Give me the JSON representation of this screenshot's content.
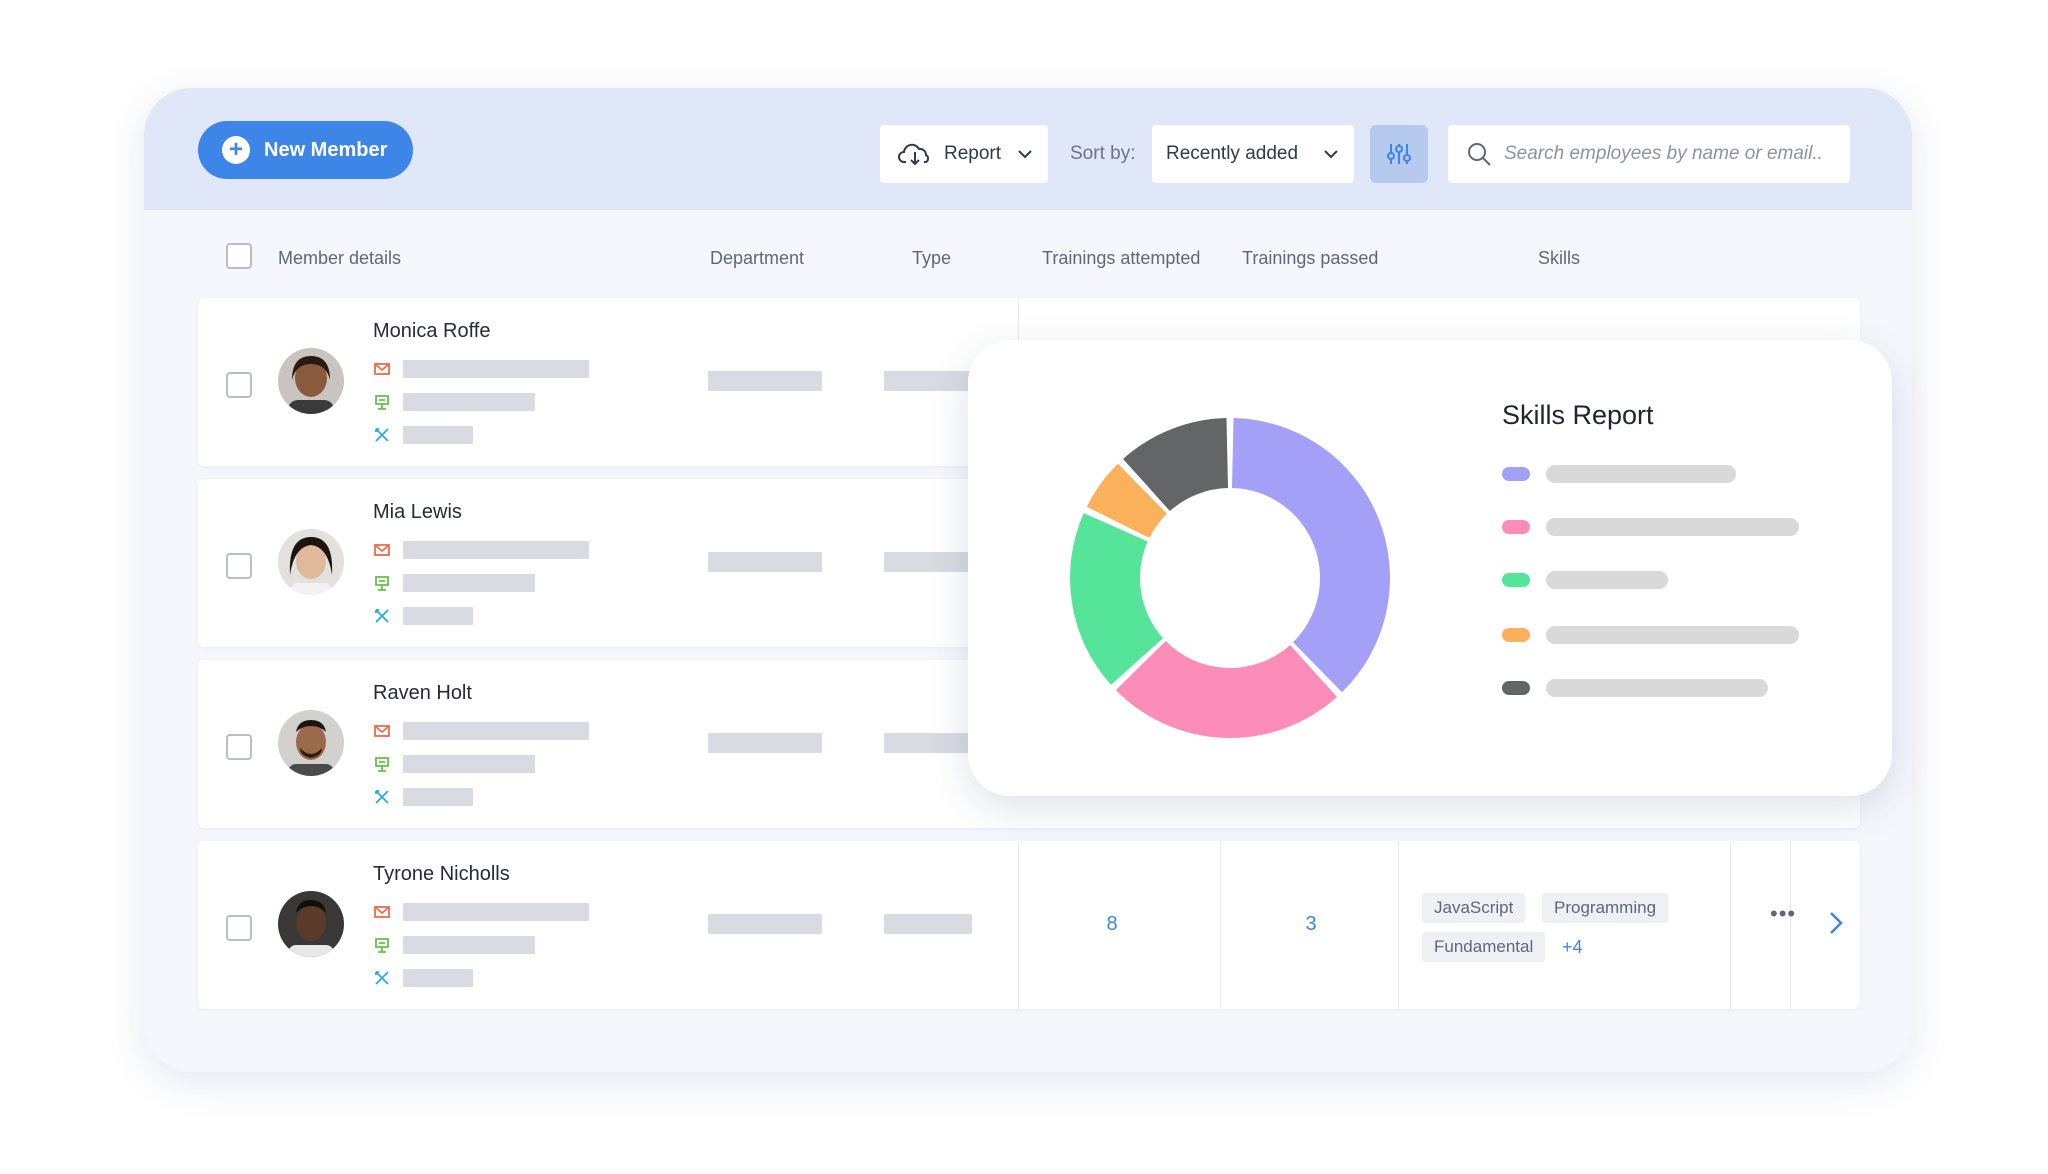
{
  "toolbar": {
    "new_member_label": "New Member",
    "report_label": "Report",
    "sort_by_label": "Sort by:",
    "sort_value": "Recently added",
    "search_placeholder": "Search employees by name or email.."
  },
  "table": {
    "columns": [
      "Member details",
      "Department",
      "Type",
      "Trainings attempted",
      "Trainings passed",
      "Skills"
    ],
    "rows": [
      {
        "name": "Monica Roffe"
      },
      {
        "name": "Mia Lewis"
      },
      {
        "name": "Raven Holt"
      },
      {
        "name": "Tyrone Nicholls",
        "trainings_attempted": "8",
        "trainings_passed": "3",
        "skills": [
          "JavaScript",
          "Programming",
          "Fundamental"
        ],
        "more_skills": "+4"
      }
    ]
  },
  "skills_report": {
    "title": "Skills Report",
    "colors": [
      "#a4a0f8",
      "#fb8db8",
      "#55e49a",
      "#fbb15c",
      "#646566"
    ]
  },
  "chart_data": {
    "type": "pie",
    "title": "Skills Report",
    "values": [
      38,
      25,
      19,
      6,
      12
    ],
    "colors": [
      "#a4a0f8",
      "#fb8db8",
      "#55e49a",
      "#fbb15c",
      "#646566"
    ],
    "legend": "right"
  }
}
